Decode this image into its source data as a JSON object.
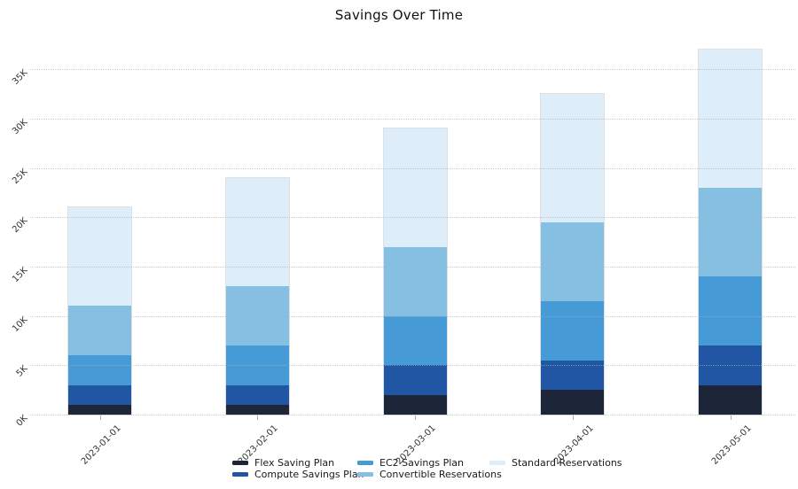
{
  "title": "Savings Over Time",
  "background_color": "#ffffff",
  "chart_data": {
    "type": "bar",
    "stacked": true,
    "title": "Savings Over Time",
    "categories": [
      "2023-01-01",
      "2023-02-01",
      "2023-03-01",
      "2023-04-01",
      "2023-05-01"
    ],
    "series": [
      {
        "name": "Flex Saving Plan",
        "color": "#1c2638",
        "values": [
          1000,
          1000,
          2000,
          2500,
          3000
        ]
      },
      {
        "name": "Compute Savings Plan",
        "color": "#2156a5",
        "values": [
          2000,
          2000,
          3000,
          3000,
          4000
        ]
      },
      {
        "name": "EC2 Savings Plan",
        "color": "#469ad5",
        "values": [
          3000,
          4000,
          5000,
          6000,
          7000
        ]
      },
      {
        "name": "Convertible Reservations",
        "color": "#85c0e2",
        "values": [
          5000,
          6000,
          7000,
          8000,
          9000
        ]
      },
      {
        "name": "Standard Reservations",
        "color": "#ddeefa",
        "values": [
          10000,
          11000,
          12000,
          13000,
          14000
        ]
      }
    ],
    "stack_totals": [
      21000,
      24000,
      29000,
      32500,
      37000
    ],
    "xlabel": "",
    "ylabel": "",
    "ylim": [
      0,
      37000
    ],
    "ytick_interval": 5000,
    "ytick_labels": [
      "0K",
      "5K",
      "10K",
      "15K",
      "20K",
      "25K",
      "30K",
      "35K"
    ],
    "xtick_angle_deg": -45,
    "grid": "horizontal-dotted-above-bars",
    "grid_color": "#b0b0b0",
    "tick_label_color": "#333333",
    "title_color": "#111111",
    "legend_position": "bottom"
  }
}
